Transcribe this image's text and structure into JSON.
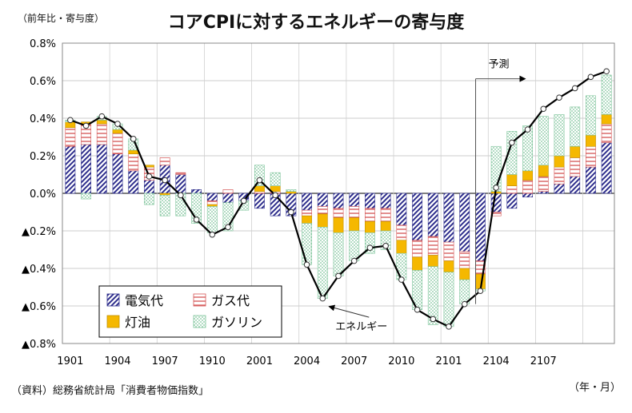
{
  "chart_data": {
    "type": "stacked-bar+line",
    "title": "コアCPIに対するエネルギーの寄与度",
    "ylabel": "（前年比・寄与度）",
    "xlabel": "（年・月）",
    "source": "（資料）総務省統計局「消費者物価指数」",
    "ylim": [
      -0.8,
      0.8
    ],
    "y_ticks": [
      {
        "value": 0.8,
        "label": "0.8%"
      },
      {
        "value": 0.6,
        "label": "0.6%"
      },
      {
        "value": 0.4,
        "label": "0.4%"
      },
      {
        "value": 0.2,
        "label": "0.2%"
      },
      {
        "value": 0.0,
        "label": "0.0%"
      },
      {
        "value": -0.2,
        "label": "▲0.2%"
      },
      {
        "value": -0.4,
        "label": "▲0.4%"
      },
      {
        "value": -0.6,
        "label": "▲0.6%"
      },
      {
        "value": -0.8,
        "label": "▲0.8%"
      }
    ],
    "categories": [
      "1901",
      "1902",
      "1903",
      "1904",
      "1905",
      "1906",
      "1907",
      "1908",
      "1909",
      "1910",
      "1911",
      "1912",
      "2001",
      "2002",
      "2003",
      "2004",
      "2005",
      "2006",
      "2007",
      "2008",
      "2009",
      "2010",
      "2011",
      "2012",
      "2101",
      "2102",
      "2103",
      "2104",
      "2105",
      "2106",
      "2107",
      "2108",
      "2109",
      "2110",
      "2111"
    ],
    "x_tick_labels": [
      {
        "index": 0,
        "label": "1901"
      },
      {
        "index": 3,
        "label": "1904"
      },
      {
        "index": 6,
        "label": "1907"
      },
      {
        "index": 9,
        "label": "1910"
      },
      {
        "index": 12,
        "label": "2001"
      },
      {
        "index": 15,
        "label": "2004"
      },
      {
        "index": 18,
        "label": "2007"
      },
      {
        "index": 21,
        "label": "2010"
      },
      {
        "index": 24,
        "label": "2101"
      },
      {
        "index": 27,
        "label": "2104"
      },
      {
        "index": 30,
        "label": "2107"
      }
    ],
    "series": [
      {
        "name": "電気代",
        "pattern": "diagonal",
        "color": "#2e2e8c",
        "values": [
          0.25,
          0.26,
          0.26,
          0.21,
          0.12,
          0.07,
          0.15,
          0.1,
          0.02,
          -0.04,
          -0.05,
          -0.04,
          -0.08,
          -0.12,
          -0.12,
          -0.09,
          -0.07,
          -0.08,
          -0.07,
          -0.08,
          -0.08,
          -0.17,
          -0.25,
          -0.23,
          -0.26,
          -0.31,
          -0.36,
          -0.1,
          -0.08,
          -0.02,
          0.01,
          0.05,
          0.09,
          0.14,
          0.27
        ]
      },
      {
        "name": "ガス代",
        "pattern": "horizontal",
        "color": "#d45555",
        "values": [
          0.1,
          0.11,
          0.11,
          0.11,
          0.09,
          0.07,
          0.04,
          0.01,
          0.0,
          -0.02,
          0.02,
          0.0,
          0.01,
          0.01,
          0.0,
          -0.03,
          -0.04,
          -0.05,
          -0.06,
          -0.07,
          -0.07,
          -0.08,
          -0.09,
          -0.1,
          -0.1,
          -0.09,
          -0.07,
          -0.02,
          0.04,
          0.07,
          0.08,
          0.09,
          0.1,
          0.11,
          0.1
        ]
      },
      {
        "name": "灯油",
        "pattern": "solid",
        "color": "#f5b800",
        "values": [
          0.03,
          0.01,
          0.02,
          0.02,
          0.02,
          0.01,
          -0.01,
          0.0,
          0.0,
          -0.01,
          0.0,
          0.0,
          0.03,
          0.03,
          0.01,
          -0.04,
          -0.07,
          -0.08,
          -0.07,
          -0.06,
          -0.05,
          -0.07,
          -0.07,
          -0.06,
          -0.06,
          -0.06,
          -0.08,
          0.01,
          0.06,
          0.05,
          0.06,
          0.06,
          0.06,
          0.06,
          0.05
        ]
      },
      {
        "name": "ガソリン",
        "pattern": "dotted",
        "color": "#7dc49a",
        "values": [
          0.01,
          -0.03,
          0.02,
          0.03,
          0.06,
          -0.06,
          -0.11,
          -0.12,
          -0.16,
          -0.14,
          -0.15,
          -0.05,
          0.11,
          0.07,
          0.01,
          -0.22,
          -0.38,
          -0.23,
          -0.16,
          -0.11,
          -0.1,
          -0.14,
          -0.21,
          -0.31,
          -0.29,
          -0.13,
          -0.01,
          0.24,
          0.23,
          0.24,
          0.26,
          0.22,
          0.21,
          0.21,
          0.21
        ]
      }
    ],
    "line": {
      "name": "エネルギー",
      "values": [
        0.39,
        0.36,
        0.41,
        0.37,
        0.29,
        0.09,
        0.07,
        -0.01,
        -0.14,
        -0.22,
        -0.18,
        -0.04,
        0.07,
        -0.01,
        -0.1,
        -0.38,
        -0.56,
        -0.44,
        -0.36,
        -0.29,
        -0.28,
        -0.46,
        -0.62,
        -0.67,
        -0.71,
        -0.59,
        -0.52,
        0.03,
        0.27,
        0.34,
        0.45,
        0.51,
        0.56,
        0.62,
        0.65
      ]
    },
    "annotations": [
      {
        "text": "予測",
        "start_index": 26.2
      },
      {
        "text": "エネルギー",
        "points_to_index": 16
      }
    ],
    "legend_position": "bottom-left inside plot"
  }
}
